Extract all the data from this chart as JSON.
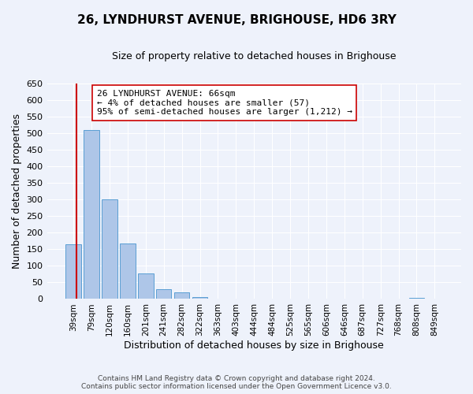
{
  "title": "26, LYNDHURST AVENUE, BRIGHOUSE, HD6 3RY",
  "subtitle": "Size of property relative to detached houses in Brighouse",
  "xlabel": "Distribution of detached houses by size in Brighouse",
  "ylabel": "Number of detached properties",
  "bar_labels": [
    "39sqm",
    "79sqm",
    "120sqm",
    "160sqm",
    "201sqm",
    "241sqm",
    "282sqm",
    "322sqm",
    "363sqm",
    "403sqm",
    "444sqm",
    "484sqm",
    "525sqm",
    "565sqm",
    "606sqm",
    "646sqm",
    "687sqm",
    "727sqm",
    "768sqm",
    "808sqm",
    "849sqm"
  ],
  "bar_values": [
    165,
    510,
    300,
    168,
    78,
    30,
    19,
    5,
    0,
    0,
    0,
    0,
    0,
    0,
    0,
    0,
    0,
    0,
    0,
    3,
    0
  ],
  "bar_color": "#aec6e8",
  "bar_edge_color": "#5a9fd4",
  "ylim": [
    0,
    650
  ],
  "yticks": [
    0,
    50,
    100,
    150,
    200,
    250,
    300,
    350,
    400,
    450,
    500,
    550,
    600,
    650
  ],
  "vline_color": "#cc0000",
  "annotation_text": "26 LYNDHURST AVENUE: 66sqm\n← 4% of detached houses are smaller (57)\n95% of semi-detached houses are larger (1,212) →",
  "annotation_box_color": "#ffffff",
  "annotation_box_edge": "#cc0000",
  "footer_line1": "Contains HM Land Registry data © Crown copyright and database right 2024.",
  "footer_line2": "Contains public sector information licensed under the Open Government Licence v3.0.",
  "background_color": "#eef2fb",
  "plot_bg_color": "#eef2fb",
  "grid_color": "#ffffff",
  "title_fontsize": 11,
  "subtitle_fontsize": 9,
  "ylabel_fontsize": 9,
  "xlabel_fontsize": 9,
  "tick_fontsize": 8,
  "xtick_fontsize": 7.5,
  "footer_fontsize": 6.5
}
